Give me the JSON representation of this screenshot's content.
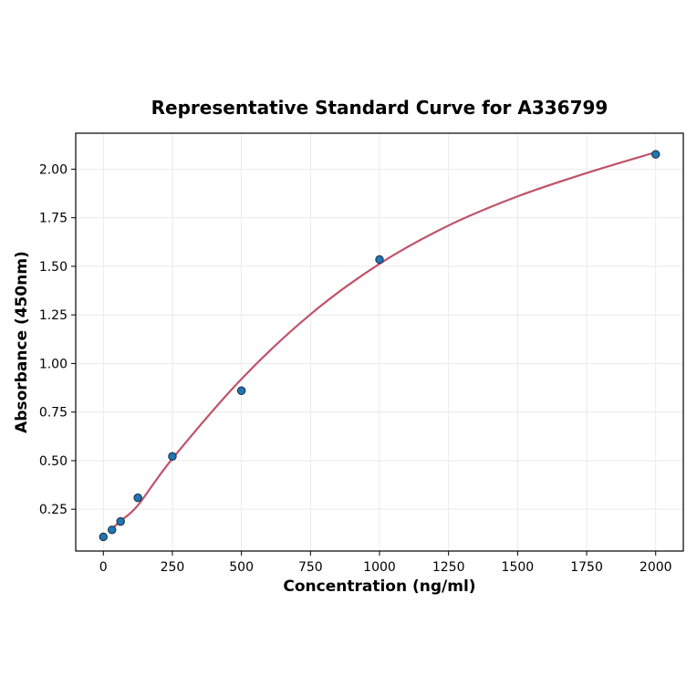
{
  "chart_data": {
    "type": "scatter",
    "title": "Representative Standard Curve for A336799",
    "xlabel": "Concentration (ng/ml)",
    "ylabel": "Absorbance (450nm)",
    "xlim": [
      -100,
      2100
    ],
    "ylim": [
      0.035,
      2.185
    ],
    "xticks": [
      0,
      250,
      500,
      750,
      1000,
      1250,
      1500,
      1750,
      2000
    ],
    "xtick_labels": [
      "0",
      "250",
      "500",
      "750",
      "1000",
      "1250",
      "1500",
      "1750",
      "2000"
    ],
    "yticks": [
      0.25,
      0.5,
      0.75,
      1.0,
      1.25,
      1.5,
      1.75,
      2.0
    ],
    "ytick_labels": [
      "0.25",
      "0.50",
      "0.75",
      "1.00",
      "1.25",
      "1.50",
      "1.75",
      "2.00"
    ],
    "grid": true,
    "points": {
      "x": [
        0,
        31.25,
        62.5,
        125,
        250,
        500,
        1000,
        2000
      ],
      "y": [
        0.108,
        0.144,
        0.187,
        0.309,
        0.522,
        0.86,
        1.535,
        2.076
      ]
    },
    "fit_curve": {
      "x": [
        31.25,
        62.5,
        125,
        250,
        500,
        750,
        1000,
        1250,
        1500,
        1750,
        2000
      ],
      "y": [
        0.15,
        0.19,
        0.27,
        0.51,
        0.92,
        1.253,
        1.513,
        1.71,
        1.86,
        1.98,
        2.087
      ]
    },
    "colors": {
      "points": "#1f77b4",
      "point_edge": "#1a2a44",
      "curve": "#c05368",
      "grid": "#e6e6e6"
    }
  }
}
